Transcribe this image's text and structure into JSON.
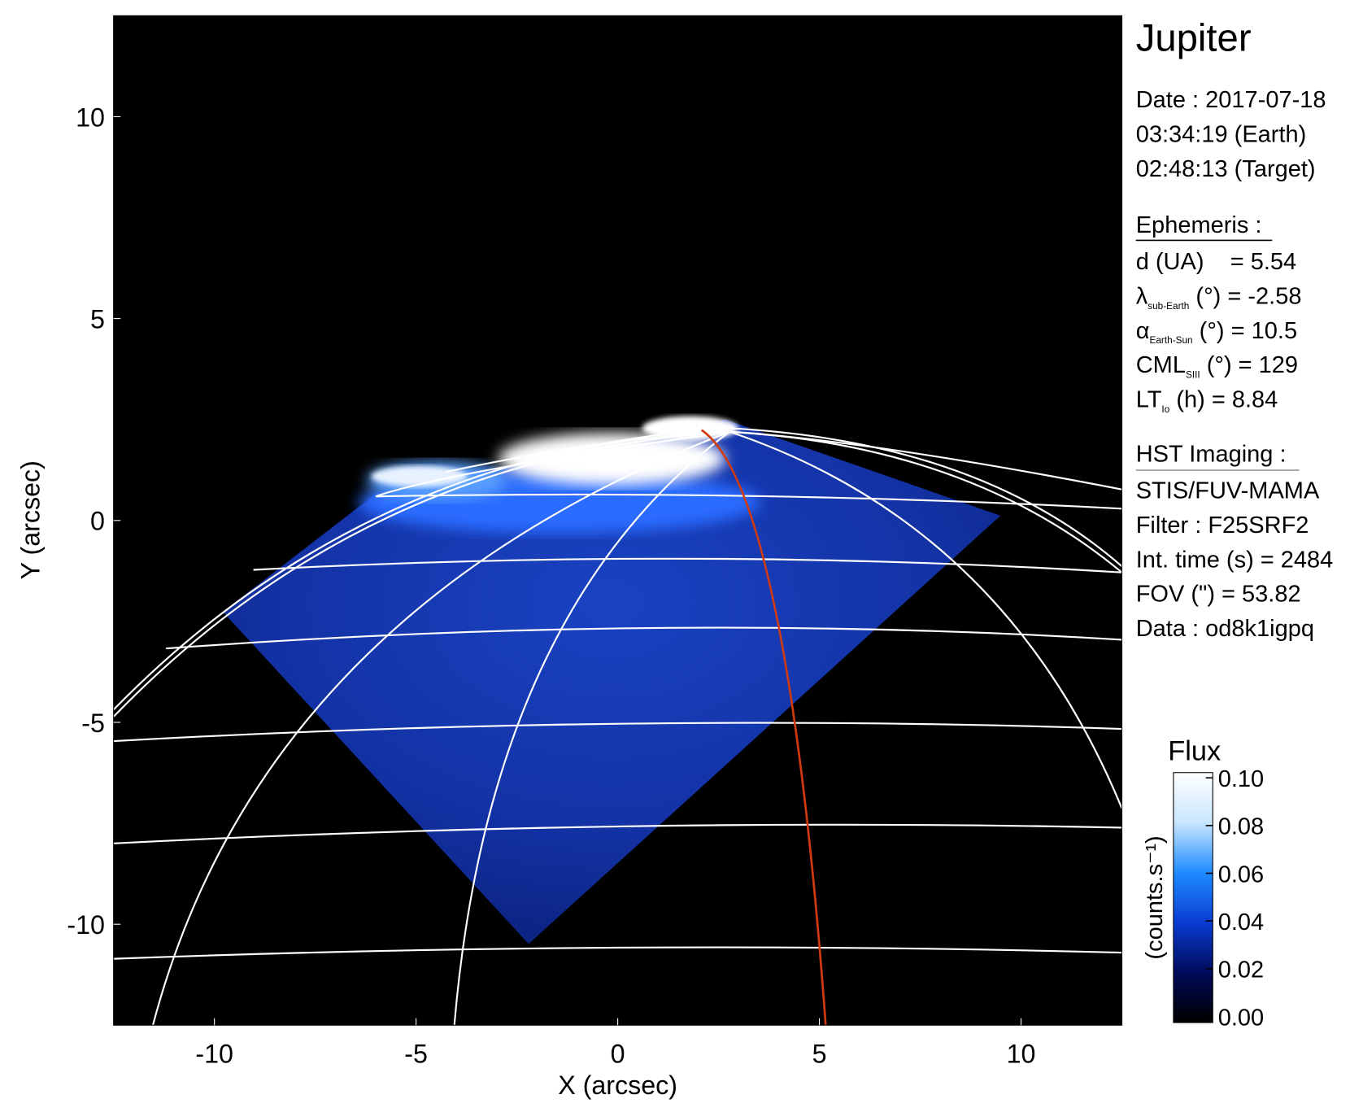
{
  "chart_data": {
    "type": "image",
    "x_label": "X (arcsec)",
    "y_label": "Y (arcsec)",
    "xlim": [
      -12.5,
      12.5
    ],
    "ylim": [
      -12.5,
      12.5
    ],
    "xticks": [
      -10,
      -5,
      0,
      5,
      10
    ],
    "yticks": [
      -10,
      -5,
      0,
      5,
      10
    ],
    "colorbar": {
      "title": "Flux",
      "label": "(counts.s⁻¹)",
      "clim": [
        0,
        0.1
      ],
      "colors": [
        "#000000",
        "#000a5a",
        "#0a3cd2",
        "#1e8cff",
        "#c8e6ff",
        "#ffffff"
      ],
      "ticks": [
        {
          "value": 0,
          "label": "0.00"
        },
        {
          "value": 0.02,
          "label": "0.02"
        },
        {
          "value": 0.04,
          "label": "0.04"
        },
        {
          "value": 0.06,
          "label": "0.06"
        },
        {
          "value": 0.08,
          "label": "0.08"
        },
        {
          "value": 0.1,
          "label": "0.10"
        }
      ]
    },
    "panel": {
      "title": "Jupiter",
      "date": [
        "Date : 2017-07-18",
        "03:34:19 (Earth)",
        "02:48:13 (Target)"
      ],
      "ephemeris_heading": "Ephemeris :",
      "ephemeris": [
        {
          "symbol": "d (UA)    = 5.54"
        },
        {
          "symbol": "λ",
          "sub": "sub-Earth",
          "rest": " (°) = -2.58"
        },
        {
          "symbol": "α",
          "sub": "Earth-Sun",
          "rest": " (°) = 10.5"
        },
        {
          "symbol": "CML",
          "sub": "SIII",
          "rest": " (°) = 129"
        },
        {
          "symbol": "LT",
          "sub": "Io",
          "rest": " (h) = 8.84"
        }
      ],
      "imaging_heading": "HST Imaging :",
      "imaging": [
        "STIS/FUV-MAMA",
        "Filter : F25SRF2",
        "Int. time (s) = 2484",
        "FOV (\") = 53.82",
        "Data : od8k1igpq"
      ]
    }
  }
}
